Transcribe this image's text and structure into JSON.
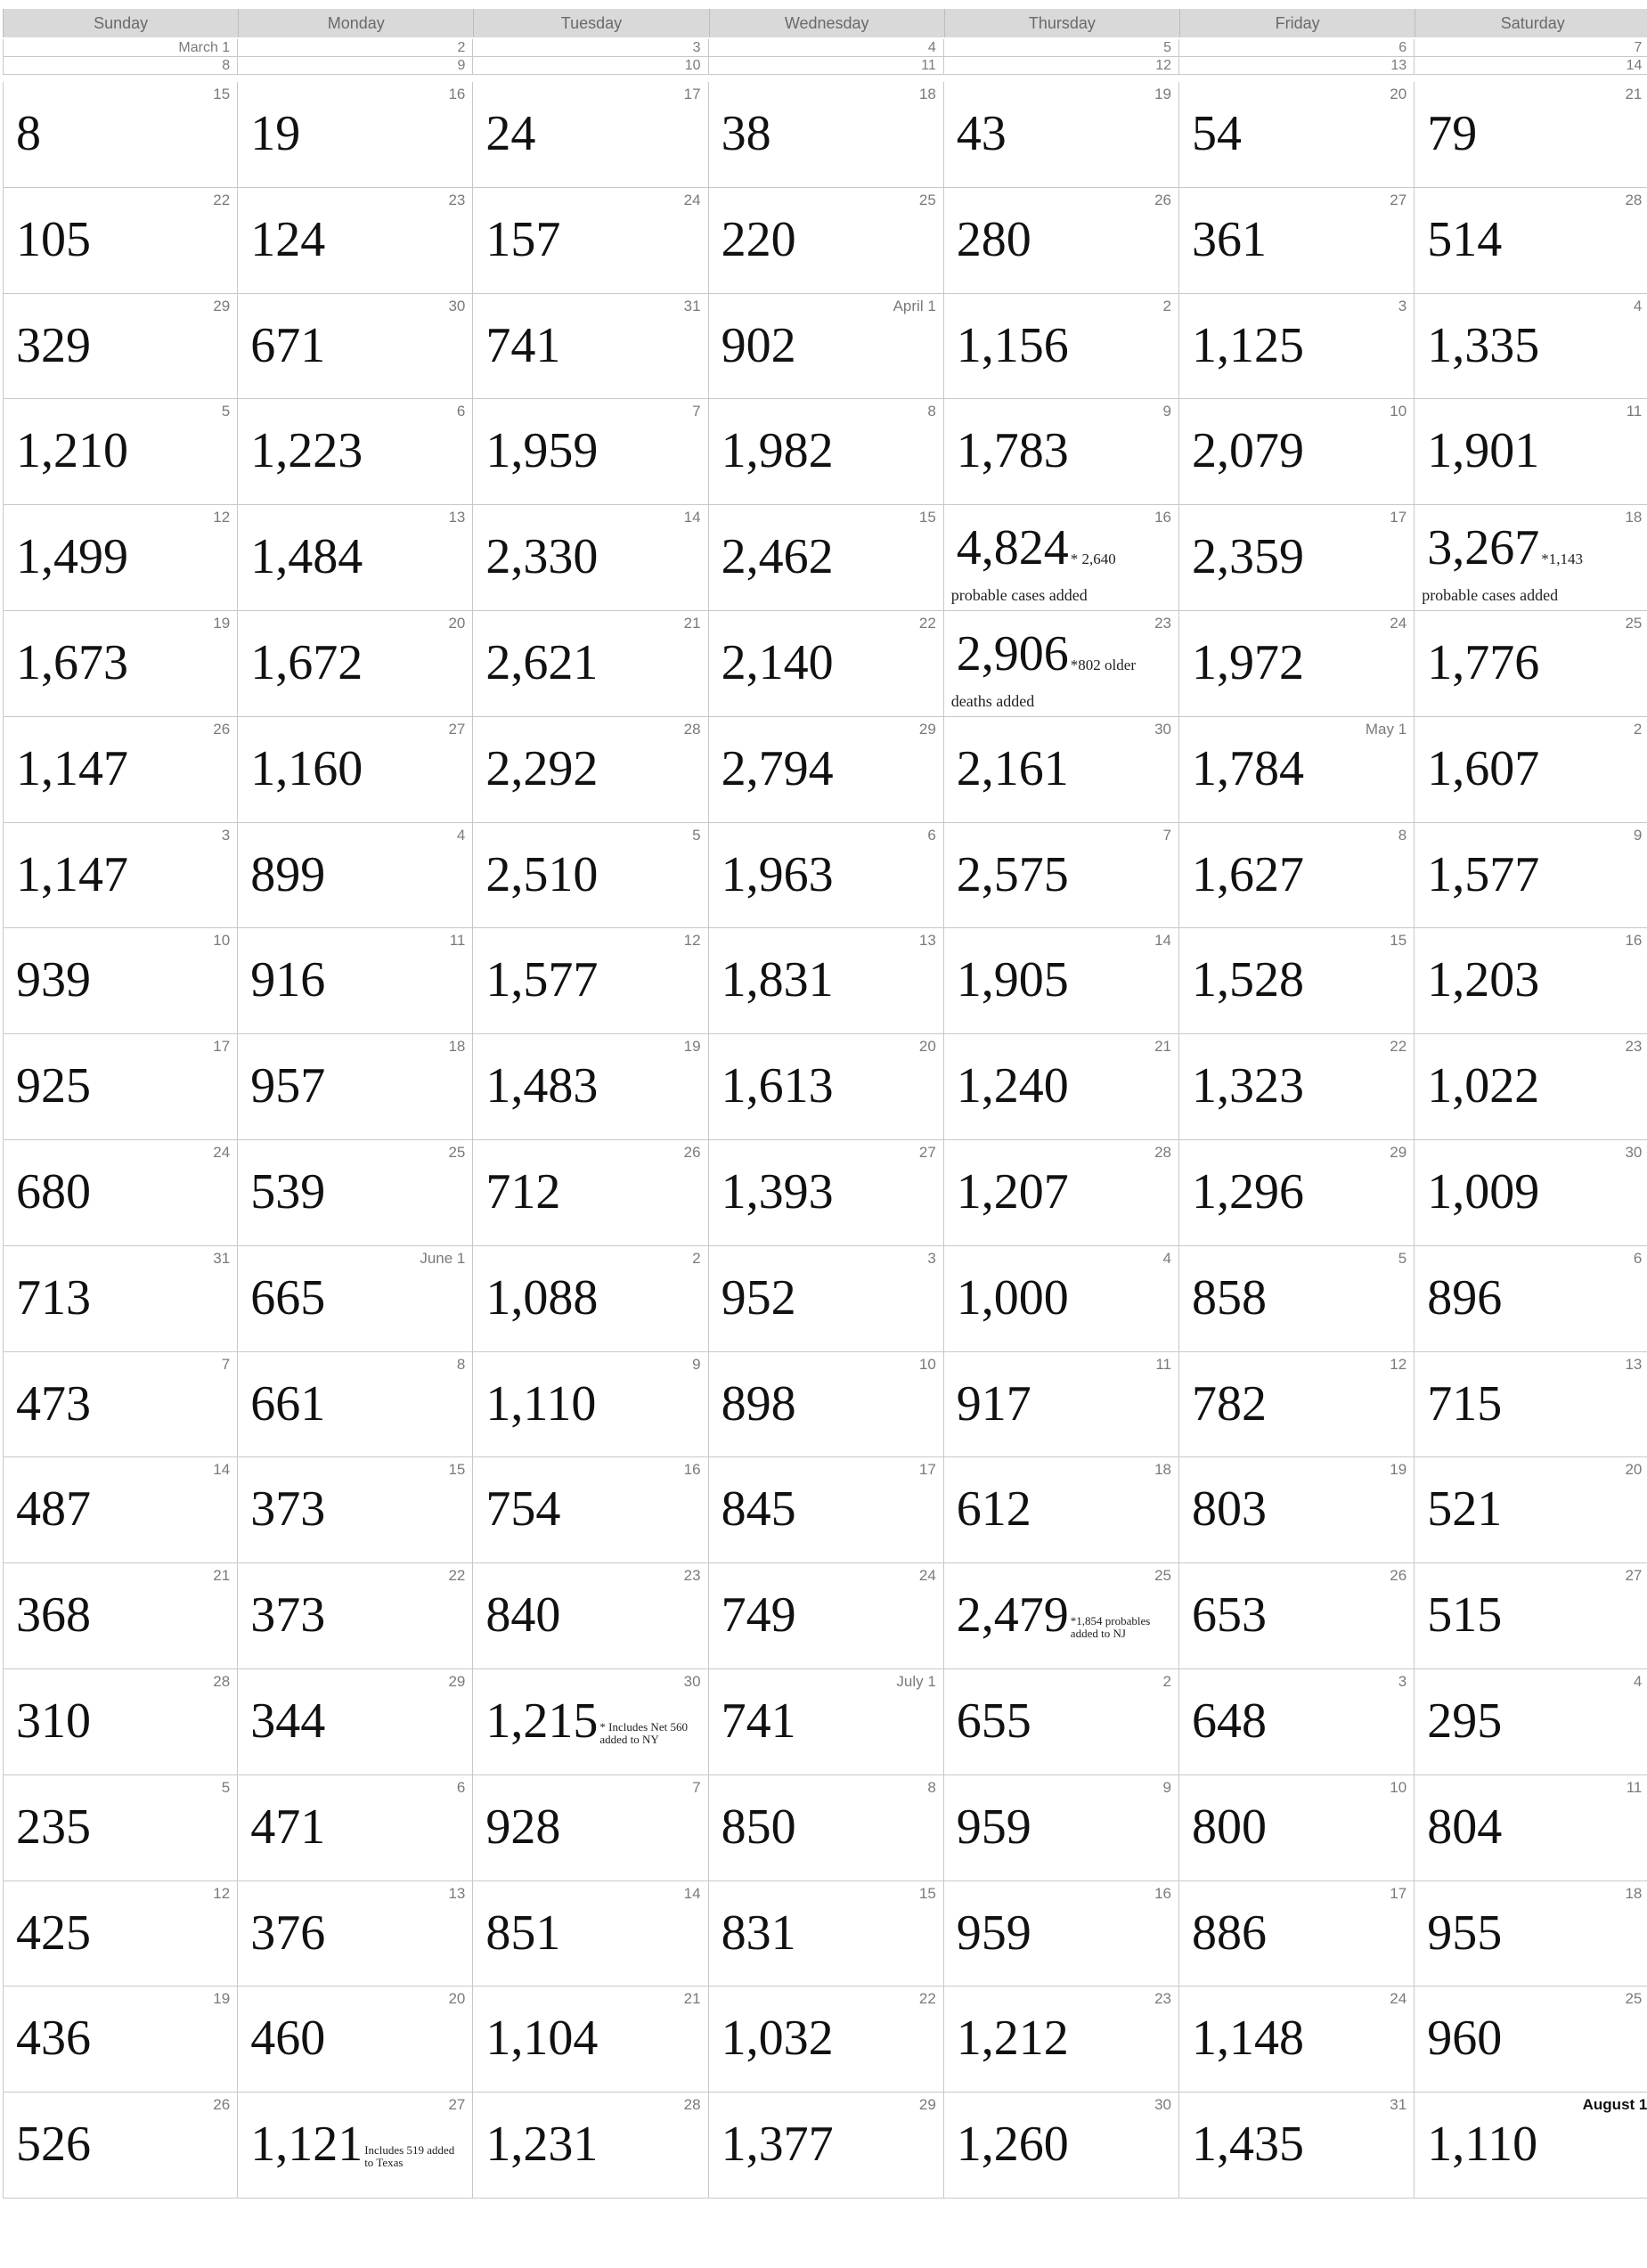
{
  "weekdays": [
    "Sunday",
    "Monday",
    "Tuesday",
    "Wednesday",
    "Thursday",
    "Friday",
    "Saturday"
  ],
  "weeks": [
    {
      "thin": true,
      "days": [
        {
          "day": "March 1",
          "value": ""
        },
        {
          "day": "2",
          "value": ""
        },
        {
          "day": "3",
          "value": ""
        },
        {
          "day": "4",
          "value": ""
        },
        {
          "day": "5",
          "value": ""
        },
        {
          "day": "6",
          "value": ""
        },
        {
          "day": "7",
          "value": ""
        }
      ]
    },
    {
      "thin": true,
      "days": [
        {
          "day": "8",
          "value": ""
        },
        {
          "day": "9",
          "value": ""
        },
        {
          "day": "10",
          "value": ""
        },
        {
          "day": "11",
          "value": ""
        },
        {
          "day": "12",
          "value": ""
        },
        {
          "day": "13",
          "value": ""
        },
        {
          "day": "14",
          "value": ""
        }
      ]
    },
    {
      "days": [
        {
          "day": "15",
          "value": "8"
        },
        {
          "day": "16",
          "value": "19"
        },
        {
          "day": "17",
          "value": "24"
        },
        {
          "day": "18",
          "value": "38"
        },
        {
          "day": "19",
          "value": "43"
        },
        {
          "day": "20",
          "value": "54"
        },
        {
          "day": "21",
          "value": "79"
        }
      ]
    },
    {
      "days": [
        {
          "day": "22",
          "value": "105"
        },
        {
          "day": "23",
          "value": "124"
        },
        {
          "day": "24",
          "value": "157"
        },
        {
          "day": "25",
          "value": "220"
        },
        {
          "day": "26",
          "value": "280"
        },
        {
          "day": "27",
          "value": "361"
        },
        {
          "day": "28",
          "value": "514"
        }
      ]
    },
    {
      "days": [
        {
          "day": "29",
          "value": "329"
        },
        {
          "day": "30",
          "value": "671"
        },
        {
          "day": "31",
          "value": "741"
        },
        {
          "day": "April 1",
          "value": "902"
        },
        {
          "day": "2",
          "value": "1,156"
        },
        {
          "day": "3",
          "value": "1,125"
        },
        {
          "day": "4",
          "value": "1,335"
        }
      ]
    },
    {
      "days": [
        {
          "day": "5",
          "value": "1,210"
        },
        {
          "day": "6",
          "value": "1,223"
        },
        {
          "day": "7",
          "value": "1,959"
        },
        {
          "day": "8",
          "value": "1,982"
        },
        {
          "day": "9",
          "value": "1,783"
        },
        {
          "day": "10",
          "value": "2,079"
        },
        {
          "day": "11",
          "value": "1,901"
        }
      ]
    },
    {
      "days": [
        {
          "day": "12",
          "value": "1,499"
        },
        {
          "day": "13",
          "value": "1,484"
        },
        {
          "day": "14",
          "value": "2,330"
        },
        {
          "day": "15",
          "value": "2,462"
        },
        {
          "day": "16",
          "value": "4,824",
          "note_inline": "* 2,640",
          "note_below": "probable cases added"
        },
        {
          "day": "17",
          "value": "2,359"
        },
        {
          "day": "18",
          "value": "3,267",
          "note_inline": "*1,143",
          "note_below": "probable cases added"
        }
      ]
    },
    {
      "days": [
        {
          "day": "19",
          "value": "1,673"
        },
        {
          "day": "20",
          "value": "1,672"
        },
        {
          "day": "21",
          "value": "2,621"
        },
        {
          "day": "22",
          "value": "2,140"
        },
        {
          "day": "23",
          "value": "2,906",
          "note_inline": "*802 older",
          "note_below": "deaths added"
        },
        {
          "day": "24",
          "value": "1,972"
        },
        {
          "day": "25",
          "value": "1,776"
        }
      ]
    },
    {
      "days": [
        {
          "day": "26",
          "value": "1,147"
        },
        {
          "day": "27",
          "value": "1,160"
        },
        {
          "day": "28",
          "value": "2,292"
        },
        {
          "day": "29",
          "value": "2,794"
        },
        {
          "day": "30",
          "value": "2,161"
        },
        {
          "day": "May 1",
          "value": "1,784"
        },
        {
          "day": "2",
          "value": "1,607"
        }
      ]
    },
    {
      "days": [
        {
          "day": "3",
          "value": "1,147"
        },
        {
          "day": "4",
          "value": "899"
        },
        {
          "day": "5",
          "value": "2,510"
        },
        {
          "day": "6",
          "value": "1,963"
        },
        {
          "day": "7",
          "value": "2,575"
        },
        {
          "day": "8",
          "value": "1,627"
        },
        {
          "day": "9",
          "value": "1,577"
        }
      ]
    },
    {
      "days": [
        {
          "day": "10",
          "value": "939"
        },
        {
          "day": "11",
          "value": "916"
        },
        {
          "day": "12",
          "value": "1,577"
        },
        {
          "day": "13",
          "value": "1,831"
        },
        {
          "day": "14",
          "value": "1,905"
        },
        {
          "day": "15",
          "value": "1,528"
        },
        {
          "day": "16",
          "value": "1,203"
        }
      ]
    },
    {
      "days": [
        {
          "day": "17",
          "value": "925"
        },
        {
          "day": "18",
          "value": "957"
        },
        {
          "day": "19",
          "value": "1,483"
        },
        {
          "day": "20",
          "value": "1,613"
        },
        {
          "day": "21",
          "value": "1,240"
        },
        {
          "day": "22",
          "value": "1,323"
        },
        {
          "day": "23",
          "value": "1,022"
        }
      ]
    },
    {
      "days": [
        {
          "day": "24",
          "value": "680"
        },
        {
          "day": "25",
          "value": "539"
        },
        {
          "day": "26",
          "value": "712"
        },
        {
          "day": "27",
          "value": "1,393"
        },
        {
          "day": "28",
          "value": "1,207"
        },
        {
          "day": "29",
          "value": "1,296"
        },
        {
          "day": "30",
          "value": "1,009"
        }
      ]
    },
    {
      "days": [
        {
          "day": "31",
          "value": "713"
        },
        {
          "day": "June 1",
          "value": "665"
        },
        {
          "day": "2",
          "value": "1,088"
        },
        {
          "day": "3",
          "value": "952"
        },
        {
          "day": "4",
          "value": "1,000"
        },
        {
          "day": "5",
          "value": "858"
        },
        {
          "day": "6",
          "value": "896"
        }
      ]
    },
    {
      "days": [
        {
          "day": "7",
          "value": "473"
        },
        {
          "day": "8",
          "value": "661"
        },
        {
          "day": "9",
          "value": "1,110"
        },
        {
          "day": "10",
          "value": "898"
        },
        {
          "day": "11",
          "value": "917"
        },
        {
          "day": "12",
          "value": "782"
        },
        {
          "day": "13",
          "value": "715"
        }
      ]
    },
    {
      "days": [
        {
          "day": "14",
          "value": "487"
        },
        {
          "day": "15",
          "value": "373"
        },
        {
          "day": "16",
          "value": "754"
        },
        {
          "day": "17",
          "value": "845"
        },
        {
          "day": "18",
          "value": "612"
        },
        {
          "day": "19",
          "value": "803"
        },
        {
          "day": "20",
          "value": "521"
        }
      ]
    },
    {
      "days": [
        {
          "day": "21",
          "value": "368"
        },
        {
          "day": "22",
          "value": "373"
        },
        {
          "day": "23",
          "value": "840"
        },
        {
          "day": "24",
          "value": "749"
        },
        {
          "day": "25",
          "value": "2,479",
          "note_tiny": "*1,854 probables added to NJ"
        },
        {
          "day": "26",
          "value": "653"
        },
        {
          "day": "27",
          "value": "515"
        }
      ]
    },
    {
      "days": [
        {
          "day": "28",
          "value": "310"
        },
        {
          "day": "29",
          "value": "344"
        },
        {
          "day": "30",
          "value": "1,215",
          "note_tiny": "* Includes Net 560 added to NY"
        },
        {
          "day": "July 1",
          "value": "741"
        },
        {
          "day": "2",
          "value": "655"
        },
        {
          "day": "3",
          "value": "648"
        },
        {
          "day": "4",
          "value": "295"
        }
      ]
    },
    {
      "days": [
        {
          "day": "5",
          "value": "235"
        },
        {
          "day": "6",
          "value": "471"
        },
        {
          "day": "7",
          "value": "928"
        },
        {
          "day": "8",
          "value": "850"
        },
        {
          "day": "9",
          "value": "959"
        },
        {
          "day": "10",
          "value": "800"
        },
        {
          "day": "11",
          "value": "804"
        }
      ]
    },
    {
      "days": [
        {
          "day": "12",
          "value": "425"
        },
        {
          "day": "13",
          "value": "376"
        },
        {
          "day": "14",
          "value": "851"
        },
        {
          "day": "15",
          "value": "831"
        },
        {
          "day": "16",
          "value": "959"
        },
        {
          "day": "17",
          "value": "886"
        },
        {
          "day": "18",
          "value": "955"
        }
      ]
    },
    {
      "days": [
        {
          "day": "19",
          "value": "436"
        },
        {
          "day": "20",
          "value": "460"
        },
        {
          "day": "21",
          "value": "1,104"
        },
        {
          "day": "22",
          "value": "1,032"
        },
        {
          "day": "23",
          "value": "1,212"
        },
        {
          "day": "24",
          "value": "1,148"
        },
        {
          "day": "25",
          "value": "960"
        }
      ]
    },
    {
      "days": [
        {
          "day": "26",
          "value": "526"
        },
        {
          "day": "27",
          "value": "1,121",
          "note_tiny": "Includes 519 added to Texas"
        },
        {
          "day": "28",
          "value": "1,231"
        },
        {
          "day": "29",
          "value": "1,377"
        },
        {
          "day": "30",
          "value": "1,260"
        },
        {
          "day": "31",
          "value": "1,435"
        },
        {
          "day": "August 1",
          "value": "1,110",
          "bold_day": true
        }
      ]
    }
  ]
}
